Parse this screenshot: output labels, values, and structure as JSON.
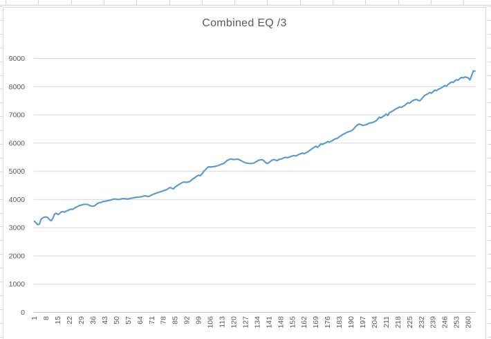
{
  "colors": {
    "line": "#5B9BD5",
    "gridline": "#D9D9D9",
    "axis_line": "#C0C0C0",
    "text": "#595959",
    "chart_border": "#D9D9D9",
    "spreadsheet_gridline": "#D6D6D6"
  },
  "chart_data": {
    "type": "line",
    "title": "Combined EQ /3",
    "xlabel": "",
    "ylabel": "",
    "x_start": 1,
    "x_step": 1,
    "n_points": 264,
    "ylim": [
      0,
      9000
    ],
    "grid": true,
    "legend": "none",
    "y_ticks": [
      0,
      1000,
      2000,
      3000,
      4000,
      5000,
      6000,
      7000,
      8000,
      9000
    ],
    "x_tick_labels": [
      1,
      8,
      15,
      22,
      29,
      36,
      43,
      50,
      57,
      64,
      71,
      78,
      85,
      92,
      99,
      106,
      113,
      120,
      127,
      134,
      141,
      148,
      155,
      162,
      169,
      176,
      183,
      190,
      197,
      204,
      211,
      218,
      225,
      232,
      239,
      246,
      253,
      260
    ],
    "values": [
      3230,
      3170,
      3110,
      3130,
      3300,
      3350,
      3375,
      3380,
      3360,
      3290,
      3245,
      3330,
      3480,
      3515,
      3470,
      3500,
      3555,
      3570,
      3550,
      3590,
      3610,
      3645,
      3660,
      3650,
      3700,
      3730,
      3760,
      3790,
      3800,
      3820,
      3830,
      3830,
      3820,
      3790,
      3770,
      3765,
      3780,
      3830,
      3870,
      3890,
      3900,
      3930,
      3935,
      3950,
      3960,
      3975,
      3990,
      4010,
      4020,
      4010,
      4000,
      4010,
      4025,
      4035,
      4030,
      4020,
      4015,
      4040,
      4050,
      4060,
      4070,
      4080,
      4085,
      4090,
      4100,
      4120,
      4130,
      4120,
      4105,
      4130,
      4160,
      4185,
      4210,
      4230,
      4250,
      4270,
      4290,
      4310,
      4330,
      4350,
      4390,
      4430,
      4400,
      4375,
      4440,
      4480,
      4520,
      4560,
      4590,
      4620,
      4615,
      4610,
      4620,
      4650,
      4700,
      4740,
      4785,
      4830,
      4865,
      4840,
      4900,
      4990,
      5050,
      5110,
      5165,
      5150,
      5160,
      5165,
      5180,
      5190,
      5210,
      5235,
      5260,
      5275,
      5330,
      5380,
      5410,
      5435,
      5430,
      5415,
      5425,
      5435,
      5420,
      5390,
      5355,
      5330,
      5300,
      5290,
      5280,
      5275,
      5280,
      5290,
      5330,
      5360,
      5395,
      5405,
      5415,
      5370,
      5315,
      5275,
      5310,
      5355,
      5400,
      5415,
      5395,
      5380,
      5420,
      5435,
      5450,
      5480,
      5495,
      5480,
      5500,
      5520,
      5545,
      5560,
      5545,
      5570,
      5600,
      5625,
      5645,
      5625,
      5650,
      5685,
      5725,
      5765,
      5810,
      5850,
      5890,
      5850,
      5905,
      5970,
      5955,
      5985,
      6010,
      6055,
      6035,
      6060,
      6095,
      6135,
      6155,
      6175,
      6220,
      6260,
      6300,
      6330,
      6365,
      6390,
      6410,
      6430,
      6470,
      6530,
      6600,
      6650,
      6675,
      6650,
      6625,
      6640,
      6650,
      6680,
      6710,
      6720,
      6730,
      6760,
      6790,
      6855,
      6920,
      6895,
      6940,
      6975,
      7030,
      6980,
      7080,
      7110,
      7140,
      7180,
      7220,
      7250,
      7280,
      7265,
      7300,
      7330,
      7390,
      7430,
      7410,
      7470,
      7510,
      7530,
      7550,
      7520,
      7500,
      7550,
      7630,
      7690,
      7720,
      7755,
      7795,
      7770,
      7820,
      7880,
      7855,
      7905,
      7930,
      7960,
      8000,
      8040,
      8015,
      8080,
      8125,
      8165,
      8150,
      8205,
      8245,
      8230,
      8290,
      8330,
      8310,
      8345,
      8330,
      8310,
      8240,
      8380,
      8560,
      8550
    ]
  }
}
